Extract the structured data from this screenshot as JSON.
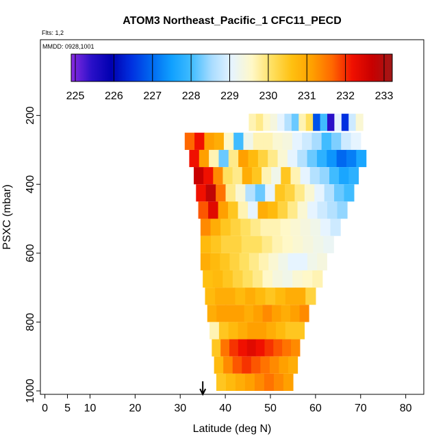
{
  "chart_data": {
    "type": "heatmap",
    "title": "ATOM3 Northeast_Pacific_1 CFC11_PECD",
    "subtitle_flights": "Flts: 1,2",
    "subtitle_dates": "MMDD: 0928,1001",
    "xlabel": "Latitude (deg N)",
    "ylabel": "PSXC (mbar)",
    "xlim": [
      -1,
      84
    ],
    "ylim": [
      1010,
      -20
    ],
    "x_ticks": [
      0,
      5,
      10,
      20,
      30,
      40,
      50,
      60,
      70,
      80
    ],
    "y_ticks": [
      200,
      400,
      600,
      800,
      1000
    ],
    "colorbar": {
      "min": 225,
      "max": 233,
      "ticks": [
        225,
        226,
        227,
        228,
        229,
        230,
        231,
        232,
        233
      ],
      "stops": [
        {
          "v": 225.0,
          "c": "#8a2be2"
        },
        {
          "v": 225.5,
          "c": "#2a10c8"
        },
        {
          "v": 226.0,
          "c": "#0000b0"
        },
        {
          "v": 226.5,
          "c": "#0030e0"
        },
        {
          "v": 227.0,
          "c": "#0068f0"
        },
        {
          "v": 227.5,
          "c": "#10a0ff"
        },
        {
          "v": 228.0,
          "c": "#40bcff"
        },
        {
          "v": 228.5,
          "c": "#a8dcff"
        },
        {
          "v": 229.0,
          "c": "#e6f4ff"
        },
        {
          "v": 229.5,
          "c": "#fff8c8"
        },
        {
          "v": 230.0,
          "c": "#ffe060"
        },
        {
          "v": 230.5,
          "c": "#ffc010"
        },
        {
          "v": 231.0,
          "c": "#ffa000"
        },
        {
          "v": 231.5,
          "c": "#ff6800"
        },
        {
          "v": 232.0,
          "c": "#f01000"
        },
        {
          "v": 232.5,
          "c": "#c80000"
        },
        {
          "v": 233.0,
          "c": "#a01818"
        }
      ]
    },
    "curtain_rows": [
      {
        "p": 220,
        "latmin": 45.2,
        "latmax": 70.5,
        "values": [
          229.6,
          229.8,
          229.5,
          229.3,
          229.0,
          228.6,
          228.2,
          229.6,
          230.0,
          226.8,
          228.0,
          225.5,
          229.0,
          226.5,
          228.8,
          229.4
        ]
      },
      {
        "p": 275,
        "latmin": 31.0,
        "latmax": 70.0,
        "values": [
          231.5,
          232.0,
          231.0,
          230.8,
          229.5,
          228.0,
          229.2,
          229.6,
          229.6,
          229.4,
          229.3,
          229.0,
          228.8,
          228.5,
          228.0,
          228.3,
          228.8,
          229.0
        ]
      },
      {
        "p": 325,
        "latmin": 32.0,
        "latmax": 71.2,
        "values": [
          232.0,
          231.0,
          229.6,
          228.2,
          229.8,
          231.0,
          230.6,
          230.2,
          229.8,
          229.4,
          229.0,
          228.6,
          228.2,
          227.8,
          227.4,
          227.0,
          227.2,
          227.6
        ]
      },
      {
        "p": 375,
        "latmin": 33.0,
        "latmax": 69.5,
        "values": [
          232.5,
          232.0,
          231.2,
          230.0,
          229.8,
          230.8,
          230.4,
          229.6,
          229.2,
          230.4,
          229.6,
          229.0,
          228.6,
          228.4,
          228.0,
          227.6,
          227.8
        ]
      },
      {
        "p": 425,
        "latmin": 33.5,
        "latmax": 68.5,
        "values": [
          232.0,
          232.6,
          231.4,
          229.8,
          229.4,
          228.6,
          228.2,
          229.0,
          230.4,
          230.2,
          229.8,
          229.4,
          229.0,
          228.6,
          228.2,
          228.0
        ]
      },
      {
        "p": 475,
        "latmin": 34.0,
        "latmax": 67.0,
        "values": [
          231.6,
          232.2,
          231.0,
          230.4,
          229.6,
          229.0,
          230.8,
          230.6,
          230.2,
          229.8,
          229.4,
          229.0,
          228.8,
          228.6,
          228.4
        ]
      },
      {
        "p": 525,
        "latmin": 34.5,
        "latmax": 65.5,
        "values": [
          231.2,
          230.8,
          230.4,
          230.2,
          230.0,
          229.8,
          229.6,
          229.6,
          229.5,
          229.4,
          229.3,
          229.2,
          229.0,
          228.8
        ]
      },
      {
        "p": 575,
        "latmin": 34.5,
        "latmax": 64.0,
        "values": [
          230.6,
          230.4,
          230.2,
          230.2,
          230.0,
          230.0,
          229.8,
          229.6,
          229.5,
          229.4,
          229.3,
          229.2,
          229.1
        ]
      },
      {
        "p": 625,
        "latmin": 34.5,
        "latmax": 62.5,
        "values": [
          230.8,
          230.6,
          230.4,
          230.2,
          230.0,
          229.8,
          229.6,
          229.4,
          229.2,
          229.0,
          229.0,
          229.2,
          229.3
        ]
      },
      {
        "p": 675,
        "latmin": 35.0,
        "latmax": 61.5,
        "values": [
          230.5,
          230.6,
          230.4,
          230.2,
          230.0,
          229.8,
          229.5,
          229.3,
          229.2,
          229.4,
          229.5,
          229.6
        ]
      },
      {
        "p": 725,
        "latmin": 35.5,
        "latmax": 60.0,
        "values": [
          230.6,
          230.8,
          230.8,
          230.6,
          230.8,
          230.6,
          230.4,
          230.6,
          230.8,
          230.8,
          230.2
        ]
      },
      {
        "p": 775,
        "latmin": 36.0,
        "latmax": 58.5,
        "values": [
          230.8,
          231.0,
          231.0,
          231.0,
          230.8,
          231.0,
          231.2,
          231.0,
          230.8,
          231.0,
          231.2
        ]
      },
      {
        "p": 825,
        "latmin": 36.5,
        "latmax": 57.5,
        "values": [
          229.6,
          230.4,
          230.6,
          230.8,
          231.0,
          231.0,
          230.8,
          230.6,
          230.4,
          230.4
        ]
      },
      {
        "p": 875,
        "latmin": 37.0,
        "latmax": 56.5,
        "values": [
          230.4,
          231.4,
          231.8,
          232.0,
          232.2,
          232.0,
          231.8,
          231.6,
          231.4,
          231.2
        ]
      },
      {
        "p": 925,
        "latmin": 37.5,
        "latmax": 56.0,
        "values": [
          230.6,
          231.2,
          231.6,
          231.8,
          231.6,
          231.4,
          231.2,
          231.0,
          230.8
        ]
      },
      {
        "p": 975,
        "latmin": 38.0,
        "latmax": 55.0,
        "values": [
          230.4,
          230.6,
          230.8,
          231.0,
          231.2,
          231.4,
          231.2,
          231.0
        ]
      }
    ],
    "marker": {
      "lat": 35,
      "symbol": "arrow-down"
    }
  }
}
